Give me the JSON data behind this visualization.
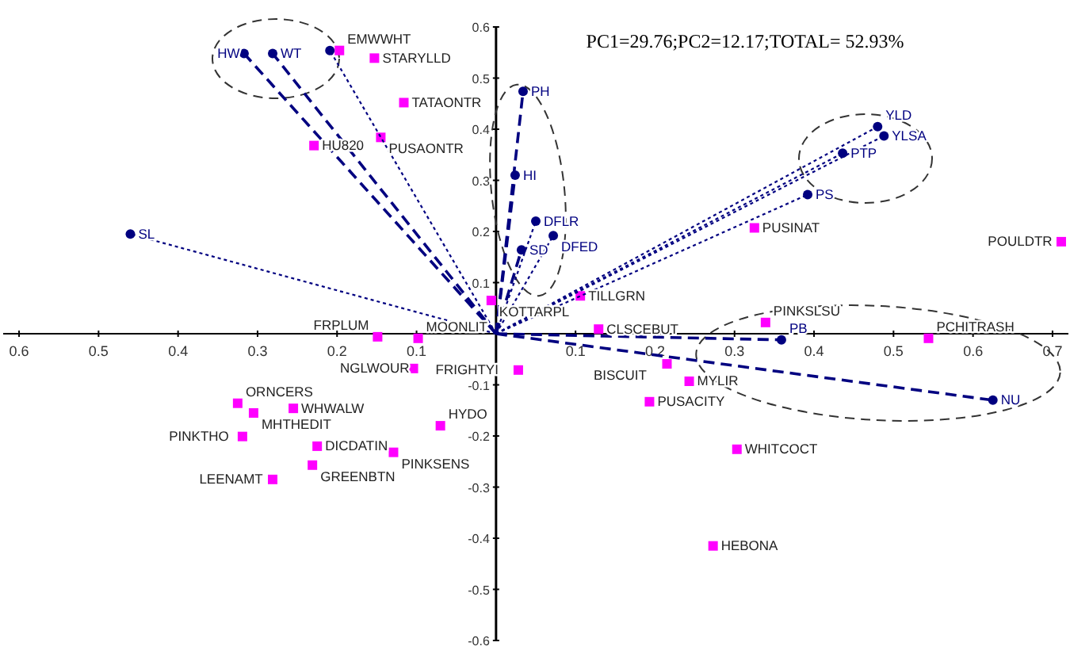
{
  "chart_data": {
    "type": "scatter",
    "title": "PC1=29.76;PC2=12.17;TOTAL= 52.93%",
    "xlim": [
      -0.62,
      0.72
    ],
    "ylim": [
      -0.6,
      0.6
    ],
    "xticks": [
      {
        "value": -0.6,
        "label": "0.6"
      },
      {
        "value": -0.5,
        "label": "0.5"
      },
      {
        "value": -0.4,
        "label": "0.4"
      },
      {
        "value": -0.3,
        "label": "0.3"
      },
      {
        "value": -0.2,
        "label": "0.2"
      },
      {
        "value": -0.1,
        "label": "0.1"
      },
      0.1,
      0.2,
      0.3,
      0.4,
      0.5,
      0.6,
      0.7
    ],
    "yticks": [
      {
        "value": -0.6,
        "label": "-0.6"
      },
      {
        "value": -0.5,
        "label": "-0.5"
      },
      {
        "value": -0.4,
        "label": "-0.4"
      },
      {
        "value": -0.3,
        "label": "-0.3"
      },
      {
        "value": -0.2,
        "label": "-0.2"
      },
      {
        "value": -0.1,
        "label": "-0.1"
      },
      0.1,
      0.2,
      0.3,
      0.4,
      0.5,
      0.6
    ],
    "series": [
      {
        "color": "#ff00ff",
        "marker": "square",
        "x": [
          -0.197,
          -0.153,
          -0.116,
          -0.145,
          -0.229,
          -0.006,
          0.106,
          0.325,
          0.711,
          0.129,
          0.339,
          0.544,
          0.215,
          0.243,
          0.193,
          0.303,
          0.028,
          0.273,
          -0.149,
          -0.098,
          -0.104,
          -0.325,
          -0.255,
          -0.305,
          -0.319,
          -0.225,
          -0.129,
          -0.07,
          -0.231,
          -0.281
        ],
        "values": [
          0.554,
          0.539,
          0.452,
          0.384,
          0.368,
          0.065,
          0.074,
          0.207,
          0.18,
          0.009,
          0.022,
          -0.009,
          -0.059,
          -0.093,
          -0.133,
          -0.226,
          -0.071,
          -0.415,
          -0.006,
          -0.009,
          -0.068,
          -0.136,
          -0.146,
          -0.155,
          -0.201,
          -0.22,
          -0.232,
          -0.18,
          -0.257,
          -0.285
        ]
      },
      {
        "type": "line",
        "name": "SL",
        "color": "#000080",
        "marker": "circle",
        "line_style": "dotted",
        "x": [
          0,
          -0.46
        ],
        "values": [
          0,
          0.195
        ]
      },
      {
        "type": "line",
        "name": "HW",
        "color": "#000080",
        "marker": "circle",
        "line_style": "dashed",
        "x": [
          0,
          -0.317
        ],
        "values": [
          0,
          0.548
        ]
      },
      {
        "type": "line",
        "name": "WT",
        "color": "#000080",
        "marker": "circle",
        "line_style": "dashed",
        "x": [
          0,
          -0.281
        ],
        "values": [
          0,
          0.548
        ]
      },
      {
        "type": "line",
        "color": "#000080",
        "marker": "circle",
        "line_style": "dotted",
        "x": [
          0,
          -0.209
        ],
        "values": [
          0,
          0.554
        ]
      },
      {
        "type": "line",
        "name": "PH",
        "color": "#000080",
        "marker": "circle",
        "line_style": "dashed",
        "x": [
          0,
          0.034
        ],
        "values": [
          0,
          0.474
        ]
      },
      {
        "type": "line",
        "name": "HI",
        "color": "#000080",
        "marker": "circle",
        "line_style": "dashed",
        "x": [
          0,
          0.024
        ],
        "values": [
          0,
          0.31
        ]
      },
      {
        "type": "line",
        "name": "DFLR",
        "color": "#000080",
        "marker": "circle",
        "line_style": "dotted",
        "x": [
          0,
          0.05
        ],
        "values": [
          0,
          0.22
        ]
      },
      {
        "type": "line",
        "name": "DFED",
        "color": "#000080",
        "marker": "circle",
        "line_style": "dotted",
        "x": [
          0,
          0.072
        ],
        "values": [
          0,
          0.192
        ]
      },
      {
        "type": "line",
        "name": "SD",
        "color": "#000080",
        "marker": "circle",
        "line_style": "dashed",
        "x": [
          0,
          0.032
        ],
        "values": [
          0,
          0.164
        ]
      },
      {
        "type": "line",
        "name": "YLD",
        "color": "#000080",
        "marker": "circle",
        "line_style": "dotted",
        "x": [
          0,
          0.48
        ],
        "values": [
          0,
          0.405
        ]
      },
      {
        "type": "line",
        "name": "YLSA",
        "color": "#000080",
        "marker": "circle",
        "line_style": "dotted",
        "x": [
          0,
          0.488
        ],
        "values": [
          0,
          0.387
        ]
      },
      {
        "type": "line",
        "name": "PTP",
        "color": "#000080",
        "marker": "circle",
        "line_style": "dotted",
        "x": [
          0,
          0.436
        ],
        "values": [
          0,
          0.353
        ]
      },
      {
        "type": "line",
        "name": "PS",
        "color": "#000080",
        "marker": "circle",
        "line_style": "dotted",
        "x": [
          0,
          0.392
        ],
        "values": [
          0,
          0.272
        ]
      },
      {
        "type": "line",
        "name": "PB",
        "color": "#000080",
        "marker": "circle",
        "line_style": "dashed",
        "x": [
          0,
          0.359
        ],
        "values": [
          0,
          -0.012
        ]
      },
      {
        "type": "line",
        "name": "NU",
        "color": "#000080",
        "marker": "circle",
        "line_style": "dashed",
        "x": [
          0,
          0.625
        ],
        "values": [
          0,
          -0.13
        ]
      }
    ],
    "annotations": [
      {
        "text": "EMWWHT",
        "x": -0.197,
        "y": 0.554
      },
      {
        "text": "STARYLLD",
        "x": -0.153,
        "y": 0.539
      },
      {
        "text": "TATAONTR",
        "x": -0.116,
        "y": 0.452
      },
      {
        "text": "PUSAONTR",
        "x": -0.145,
        "y": 0.384
      },
      {
        "text": "HU820",
        "x": -0.229,
        "y": 0.368
      },
      {
        "text": "KOTTARPL",
        "x": -0.006,
        "y": 0.065
      },
      {
        "text": "TILLGRN",
        "x": 0.106,
        "y": 0.074
      },
      {
        "text": "PUSINAT",
        "x": 0.325,
        "y": 0.207
      },
      {
        "text": "POULDTR",
        "x": 0.711,
        "y": 0.18
      },
      {
        "text": "CLSCEBUT",
        "x": 0.129,
        "y": 0.009
      },
      {
        "text": "PINKSLSU",
        "x": 0.339,
        "y": 0.022
      },
      {
        "text": "PCHITRASH",
        "x": 0.544,
        "y": -0.009
      },
      {
        "text": "BISCUIT",
        "x": 0.215,
        "y": -0.059
      },
      {
        "text": "MYLIR",
        "x": 0.243,
        "y": -0.093
      },
      {
        "text": "PUSACITY",
        "x": 0.193,
        "y": -0.133
      },
      {
        "text": "WHITCOCT",
        "x": 0.303,
        "y": -0.226
      },
      {
        "text": "FRIGHTYI",
        "x": 0.028,
        "y": -0.071
      },
      {
        "text": "HEBONA",
        "x": 0.273,
        "y": -0.415
      },
      {
        "text": "FRPLUM",
        "x": -0.149,
        "y": -0.006
      },
      {
        "text": "MOONLIT",
        "x": -0.098,
        "y": -0.009
      },
      {
        "text": "NGLWOUR",
        "x": -0.104,
        "y": -0.068
      },
      {
        "text": "ORNCERS",
        "x": -0.325,
        "y": -0.136
      },
      {
        "text": "WHWALW",
        "x": -0.255,
        "y": -0.146
      },
      {
        "text": "MHTHEDIT",
        "x": -0.305,
        "y": -0.155
      },
      {
        "text": "PINKTHO",
        "x": -0.319,
        "y": -0.201
      },
      {
        "text": "DICDATIN",
        "x": -0.225,
        "y": -0.22
      },
      {
        "text": "PINKSENS",
        "x": -0.129,
        "y": -0.232
      },
      {
        "text": "HYDO",
        "x": -0.07,
        "y": -0.18
      },
      {
        "text": "GREENBTN",
        "x": -0.231,
        "y": -0.257
      },
      {
        "text": "LEENAMT",
        "x": -0.281,
        "y": -0.285
      }
    ]
  }
}
